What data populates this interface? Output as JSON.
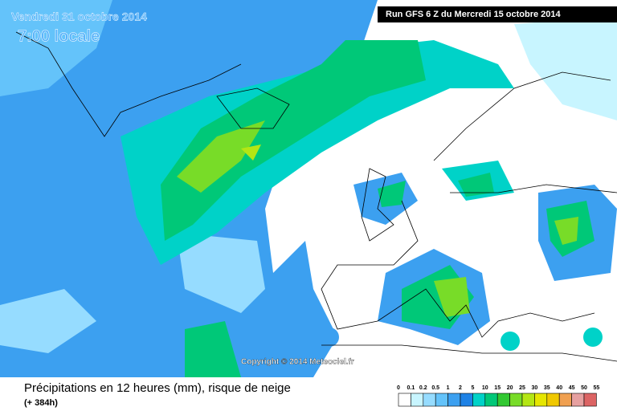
{
  "header": {
    "date": "Vendredi 31 octobre 2014",
    "time": "7:00 locale",
    "run": "Run GFS 6 Z du Mercredi 15 octobre 2014"
  },
  "copyright": "Copyright © 2014 Meteociel.fr",
  "footer": {
    "title": "Précipitations en 12 heures (mm), risque de neige",
    "lead": "(+ 384h)"
  },
  "legend": {
    "labels": [
      "0",
      "0.1",
      "0.2",
      "0.5",
      "1",
      "2",
      "5",
      "10",
      "15",
      "20",
      "25",
      "30",
      "35",
      "40",
      "45",
      "50",
      "55"
    ],
    "colors": [
      "#ffffff",
      "#c8f5ff",
      "#96dcff",
      "#64c3fa",
      "#3ca0f0",
      "#1e82e6",
      "#00d2c8",
      "#00c878",
      "#32c832",
      "#78dc28",
      "#b4e614",
      "#e6e600",
      "#f0c800",
      "#f0a050",
      "#e6a0a0",
      "#dc6464"
    ]
  }
}
